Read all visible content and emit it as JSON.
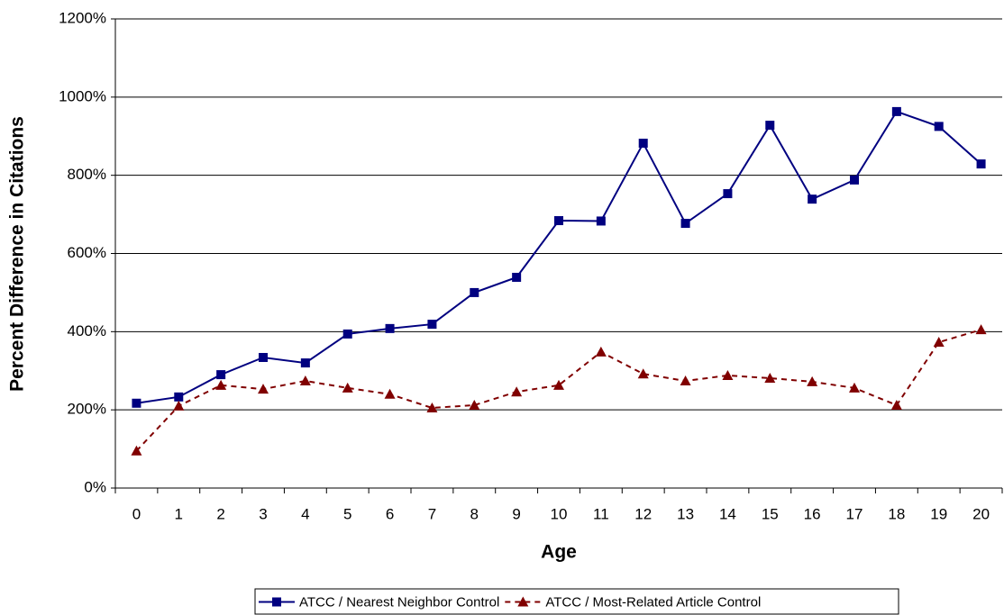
{
  "chart_data": {
    "type": "line",
    "x_label": "Age",
    "y_label": "Percent Difference in Citations",
    "categories": [
      "0",
      "1",
      "2",
      "3",
      "4",
      "5",
      "6",
      "7",
      "8",
      "9",
      "10",
      "11",
      "12",
      "13",
      "14",
      "15",
      "16",
      "17",
      "18",
      "19",
      "20"
    ],
    "ylim": [
      0,
      1200
    ],
    "yticks": [
      {
        "value": 0,
        "label": "0%"
      },
      {
        "value": 200,
        "label": "200%"
      },
      {
        "value": 400,
        "label": "400%"
      },
      {
        "value": 600,
        "label": "600%"
      },
      {
        "value": 800,
        "label": "800%"
      },
      {
        "value": 1000,
        "label": "1000%"
      },
      {
        "value": 1200,
        "label": "1200%"
      }
    ],
    "grid": true,
    "legend": "bottom",
    "series": [
      {
        "name": "ATCC / Nearest Neighbor Control",
        "color": "#000080",
        "marker": "square",
        "dash": false,
        "values": [
          217,
          233,
          290,
          334,
          320,
          394,
          408,
          419,
          500,
          539,
          684,
          683,
          882,
          677,
          753,
          928,
          739,
          788,
          963,
          925,
          829
        ]
      },
      {
        "name": "ATCC / Most-Related Article Control",
        "color": "#800000",
        "marker": "triangle",
        "dash": true,
        "values": [
          95,
          210,
          263,
          253,
          274,
          256,
          240,
          205,
          212,
          246,
          263,
          348,
          292,
          274,
          288,
          281,
          272,
          256,
          212,
          373,
          405
        ]
      }
    ]
  }
}
